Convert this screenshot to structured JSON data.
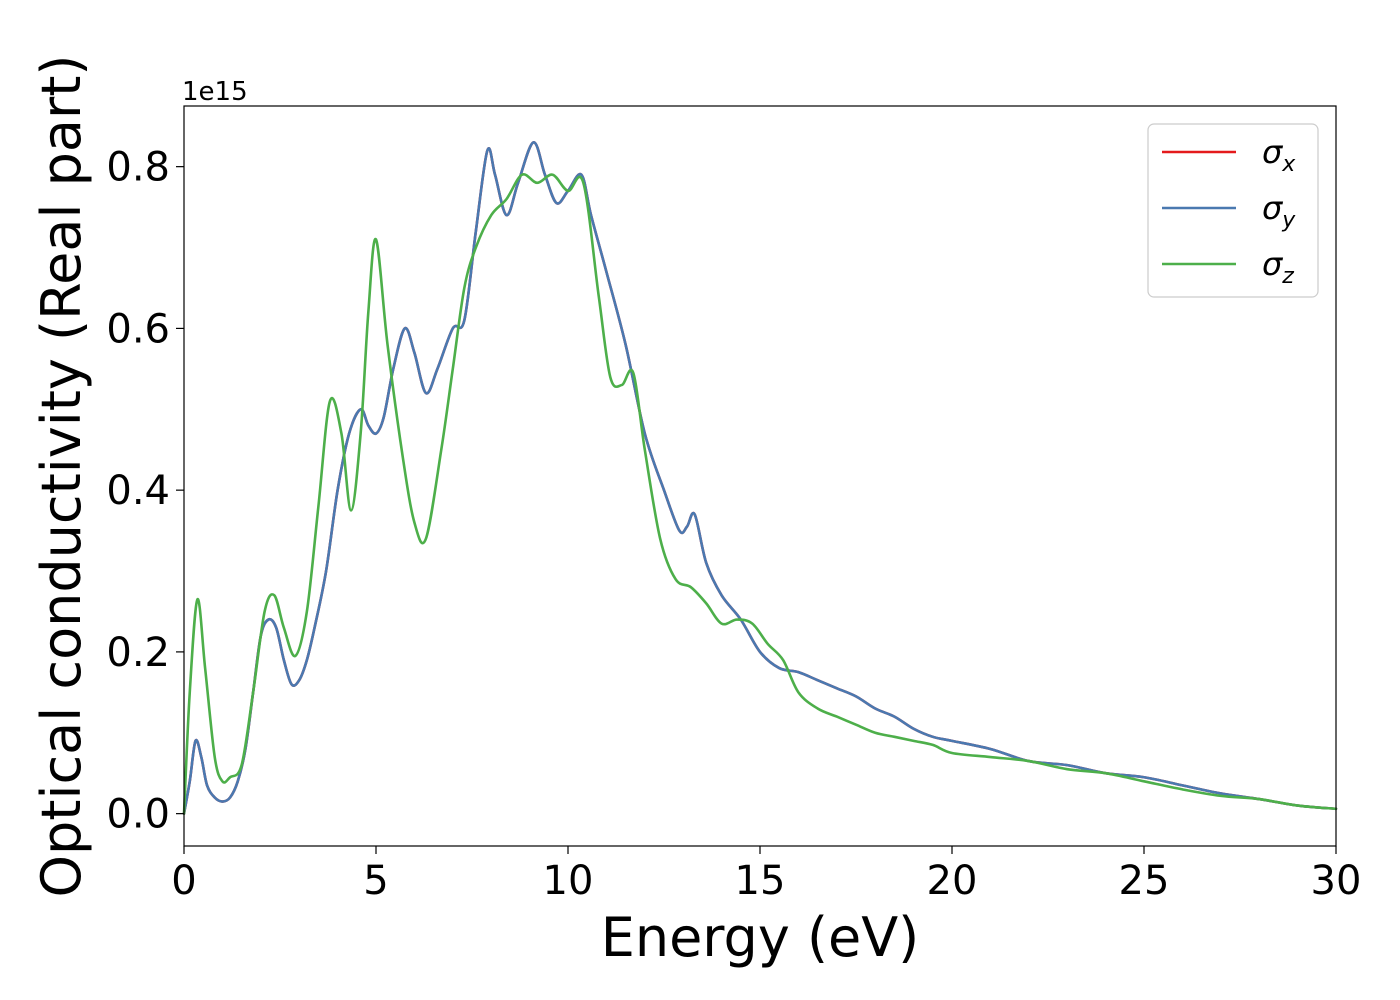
{
  "chart_data": {
    "type": "line",
    "title": "",
    "xlabel": "Energy (eV)",
    "ylabel": "Optical conductivity (Real part)",
    "y_offset_label": "1e15",
    "xlim": [
      0,
      30
    ],
    "ylim": [
      -0.04,
      0.875
    ],
    "xticks": [
      0,
      5,
      10,
      15,
      20,
      25,
      30
    ],
    "xtick_labels": [
      "0",
      "5",
      "10",
      "15",
      "20",
      "25",
      "30"
    ],
    "yticks": [
      0.0,
      0.2,
      0.4,
      0.6,
      0.8
    ],
    "ytick_labels": [
      "0.0",
      "0.2",
      "0.4",
      "0.6",
      "0.8"
    ],
    "grid": false,
    "legend_position": "top-right",
    "series": [
      {
        "name": "σx",
        "symbol": "σ",
        "subscript": "x",
        "color": "#e41a1c",
        "x": [
          0,
          0.15,
          0.3,
          0.45,
          0.6,
          0.8,
          1.0,
          1.2,
          1.4,
          1.6,
          1.8,
          2.0,
          2.2,
          2.4,
          2.6,
          2.8,
          3.0,
          3.2,
          3.4,
          3.7,
          4.0,
          4.3,
          4.6,
          4.8,
          5.0,
          5.2,
          5.45,
          5.75,
          6.0,
          6.3,
          6.6,
          7.0,
          7.3,
          7.6,
          7.9,
          8.1,
          8.4,
          8.7,
          9.1,
          9.4,
          9.7,
          10.0,
          10.35,
          10.6,
          11.0,
          11.5,
          12.0,
          12.5,
          12.9,
          13.1,
          13.3,
          13.6,
          14.0,
          14.5,
          15.0,
          15.5,
          16.0,
          16.5,
          17.0,
          17.5,
          18.0,
          18.5,
          19.0,
          19.5,
          20.0,
          21.0,
          22.0,
          23.0,
          24.0,
          25.0,
          26.0,
          27.0,
          28.0,
          29.0,
          30.0
        ],
        "y": [
          0.0,
          0.04,
          0.09,
          0.07,
          0.035,
          0.02,
          0.015,
          0.02,
          0.04,
          0.08,
          0.15,
          0.22,
          0.24,
          0.23,
          0.19,
          0.16,
          0.165,
          0.19,
          0.23,
          0.3,
          0.4,
          0.47,
          0.5,
          0.48,
          0.47,
          0.49,
          0.55,
          0.6,
          0.57,
          0.52,
          0.55,
          0.6,
          0.61,
          0.72,
          0.82,
          0.79,
          0.74,
          0.78,
          0.83,
          0.79,
          0.755,
          0.77,
          0.79,
          0.74,
          0.67,
          0.58,
          0.47,
          0.4,
          0.35,
          0.355,
          0.37,
          0.31,
          0.27,
          0.24,
          0.2,
          0.18,
          0.175,
          0.165,
          0.155,
          0.145,
          0.13,
          0.12,
          0.105,
          0.095,
          0.09,
          0.08,
          0.065,
          0.06,
          0.05,
          0.045,
          0.035,
          0.025,
          0.018,
          0.01,
          0.006
        ]
      },
      {
        "name": "σy",
        "symbol": "σ",
        "subscript": "y",
        "color": "#4a79b0",
        "x": [
          0,
          0.15,
          0.3,
          0.45,
          0.6,
          0.8,
          1.0,
          1.2,
          1.4,
          1.6,
          1.8,
          2.0,
          2.2,
          2.4,
          2.6,
          2.8,
          3.0,
          3.2,
          3.4,
          3.7,
          4.0,
          4.3,
          4.6,
          4.8,
          5.0,
          5.2,
          5.45,
          5.75,
          6.0,
          6.3,
          6.6,
          7.0,
          7.3,
          7.6,
          7.9,
          8.1,
          8.4,
          8.7,
          9.1,
          9.4,
          9.7,
          10.0,
          10.35,
          10.6,
          11.0,
          11.5,
          12.0,
          12.5,
          12.9,
          13.1,
          13.3,
          13.6,
          14.0,
          14.5,
          15.0,
          15.5,
          16.0,
          16.5,
          17.0,
          17.5,
          18.0,
          18.5,
          19.0,
          19.5,
          20.0,
          21.0,
          22.0,
          23.0,
          24.0,
          25.0,
          26.0,
          27.0,
          28.0,
          29.0,
          30.0
        ],
        "y": [
          0.0,
          0.04,
          0.09,
          0.07,
          0.035,
          0.02,
          0.015,
          0.02,
          0.04,
          0.08,
          0.15,
          0.22,
          0.24,
          0.23,
          0.19,
          0.16,
          0.165,
          0.19,
          0.23,
          0.3,
          0.4,
          0.47,
          0.5,
          0.48,
          0.47,
          0.49,
          0.55,
          0.6,
          0.57,
          0.52,
          0.55,
          0.6,
          0.61,
          0.72,
          0.82,
          0.79,
          0.74,
          0.78,
          0.83,
          0.79,
          0.755,
          0.77,
          0.79,
          0.74,
          0.67,
          0.58,
          0.47,
          0.4,
          0.35,
          0.355,
          0.37,
          0.31,
          0.27,
          0.24,
          0.2,
          0.18,
          0.175,
          0.165,
          0.155,
          0.145,
          0.13,
          0.12,
          0.105,
          0.095,
          0.09,
          0.08,
          0.065,
          0.06,
          0.05,
          0.045,
          0.035,
          0.025,
          0.018,
          0.01,
          0.006
        ]
      },
      {
        "name": "σz",
        "symbol": "σ",
        "subscript": "z",
        "color": "#4daf4a",
        "x": [
          0,
          0.15,
          0.35,
          0.55,
          0.8,
          1.0,
          1.2,
          1.5,
          1.8,
          2.1,
          2.35,
          2.6,
          2.9,
          3.2,
          3.5,
          3.8,
          4.1,
          4.35,
          4.6,
          4.8,
          5.0,
          5.3,
          5.7,
          6.0,
          6.3,
          6.7,
          7.0,
          7.3,
          7.6,
          8.0,
          8.4,
          8.8,
          9.2,
          9.6,
          10.0,
          10.4,
          10.8,
          11.1,
          11.4,
          11.7,
          12.0,
          12.4,
          12.8,
          13.2,
          13.6,
          14.0,
          14.4,
          14.8,
          15.2,
          15.6,
          16.0,
          16.5,
          17.0,
          17.5,
          18.0,
          18.5,
          19.0,
          19.5,
          20.0,
          21.0,
          22.0,
          23.0,
          24.0,
          25.0,
          26.0,
          27.0,
          28.0,
          29.0,
          30.0
        ],
        "y": [
          0.0,
          0.15,
          0.265,
          0.18,
          0.07,
          0.04,
          0.045,
          0.06,
          0.15,
          0.25,
          0.27,
          0.23,
          0.195,
          0.25,
          0.38,
          0.51,
          0.47,
          0.375,
          0.47,
          0.62,
          0.71,
          0.58,
          0.44,
          0.36,
          0.34,
          0.45,
          0.55,
          0.65,
          0.7,
          0.74,
          0.76,
          0.79,
          0.78,
          0.79,
          0.77,
          0.78,
          0.64,
          0.54,
          0.53,
          0.545,
          0.45,
          0.34,
          0.29,
          0.28,
          0.26,
          0.235,
          0.24,
          0.235,
          0.21,
          0.19,
          0.15,
          0.13,
          0.12,
          0.11,
          0.1,
          0.095,
          0.09,
          0.085,
          0.075,
          0.07,
          0.065,
          0.055,
          0.05,
          0.04,
          0.03,
          0.022,
          0.018,
          0.01,
          0.006
        ]
      }
    ]
  }
}
